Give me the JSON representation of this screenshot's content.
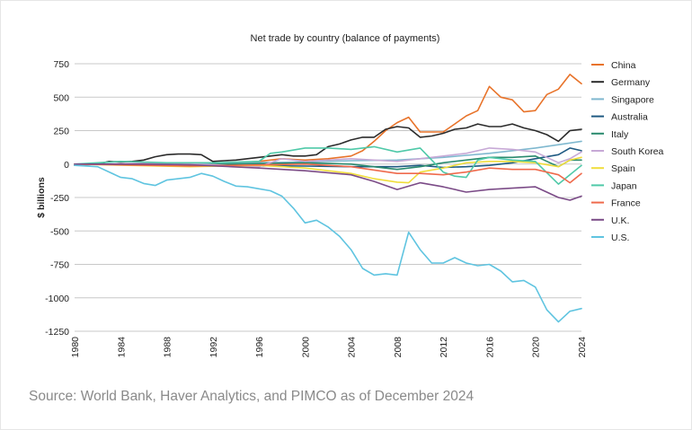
{
  "chart_data": {
    "type": "line",
    "title": "Net trade by country (balance of payments)",
    "xlabel": "",
    "ylabel": "$ billions",
    "xlim": [
      1980,
      2024
    ],
    "ylim": [
      -1250,
      750
    ],
    "yticks": [
      750,
      500,
      250,
      0,
      -250,
      -500,
      -750,
      -1000,
      -1250
    ],
    "xticks": [
      1980,
      1984,
      1988,
      1992,
      1996,
      2000,
      2004,
      2008,
      2012,
      2016,
      2020,
      2024
    ],
    "grid": "horizontal",
    "legend_position": "right",
    "series": [
      {
        "name": "China",
        "color": "#e8732a",
        "x": [
          1980,
          1984,
          1988,
          1990,
          1993,
          1994,
          1996,
          1998,
          2000,
          2002,
          2004,
          2005,
          2006,
          2007,
          2008,
          2009,
          2010,
          2011,
          2012,
          2013,
          2014,
          2015,
          2016,
          2017,
          2018,
          2019,
          2020,
          2021,
          2022,
          2023,
          2024
        ],
        "y": [
          0,
          0,
          -5,
          10,
          -10,
          10,
          20,
          40,
          30,
          40,
          60,
          100,
          170,
          250,
          310,
          350,
          240,
          240,
          240,
          300,
          360,
          400,
          580,
          500,
          480,
          390,
          400,
          520,
          560,
          670,
          600
        ]
      },
      {
        "name": "Germany",
        "color": "#2b2b2b",
        "x": [
          1980,
          1982,
          1983,
          1984,
          1985,
          1986,
          1987,
          1988,
          1989,
          1990,
          1991,
          1992,
          1993,
          1994,
          1995,
          1996,
          1997,
          1998,
          1999,
          2000,
          2001,
          2002,
          2003,
          2004,
          2005,
          2006,
          2007,
          2008,
          2009,
          2010,
          2011,
          2012,
          2013,
          2014,
          2015,
          2016,
          2017,
          2018,
          2019,
          2020,
          2021,
          2022,
          2023,
          2024
        ],
        "y": [
          -10,
          0,
          20,
          15,
          20,
          30,
          55,
          70,
          75,
          75,
          70,
          20,
          25,
          30,
          40,
          50,
          60,
          70,
          60,
          60,
          70,
          130,
          150,
          180,
          200,
          200,
          260,
          280,
          270,
          200,
          210,
          230,
          260,
          270,
          300,
          280,
          280,
          300,
          270,
          250,
          220,
          170,
          250,
          260
        ]
      },
      {
        "name": "Singapore",
        "color": "#7fb8cf",
        "x": [
          1980,
          1990,
          2000,
          2004,
          2008,
          2012,
          2016,
          2020,
          2024
        ],
        "y": [
          0,
          5,
          15,
          25,
          30,
          50,
          80,
          120,
          170
        ]
      },
      {
        "name": "Australia",
        "color": "#1f5a82",
        "x": [
          1980,
          1990,
          2000,
          2004,
          2008,
          2010,
          2012,
          2014,
          2016,
          2018,
          2020,
          2022,
          2023,
          2024
        ],
        "y": [
          0,
          -10,
          -15,
          -20,
          -20,
          -10,
          -25,
          -20,
          -10,
          10,
          40,
          70,
          120,
          100
        ]
      },
      {
        "name": "Italy",
        "color": "#2a8a6e",
        "x": [
          1980,
          1990,
          2000,
          2004,
          2008,
          2010,
          2012,
          2014,
          2016,
          2018,
          2020,
          2022,
          2023,
          2024
        ],
        "y": [
          0,
          -5,
          10,
          0,
          -40,
          -20,
          10,
          30,
          50,
          50,
          60,
          -20,
          30,
          30
        ]
      },
      {
        "name": "South Korea",
        "color": "#c7a9d6",
        "x": [
          1980,
          1988,
          1992,
          1996,
          1998,
          2000,
          2004,
          2008,
          2010,
          2012,
          2014,
          2016,
          2018,
          2020,
          2022,
          2023,
          2024
        ],
        "y": [
          -5,
          10,
          -5,
          -20,
          40,
          20,
          40,
          20,
          40,
          60,
          80,
          120,
          110,
          90,
          10,
          40,
          90
        ]
      },
      {
        "name": "Spain",
        "color": "#f0dd3c",
        "x": [
          1980,
          1990,
          1996,
          2000,
          2004,
          2006,
          2008,
          2009,
          2010,
          2012,
          2014,
          2016,
          2018,
          2020,
          2022,
          2023,
          2024
        ],
        "y": [
          0,
          -20,
          -10,
          -30,
          -70,
          -110,
          -135,
          -140,
          -60,
          -30,
          10,
          20,
          20,
          10,
          -20,
          30,
          50
        ]
      },
      {
        "name": "Japan",
        "color": "#4fc9a8",
        "x": [
          1980,
          1984,
          1988,
          1992,
          1996,
          1997,
          1998,
          2000,
          2002,
          2004,
          2006,
          2008,
          2010,
          2011,
          2012,
          2013,
          2014,
          2015,
          2016,
          2018,
          2020,
          2022,
          2024
        ],
        "y": [
          0,
          20,
          10,
          10,
          20,
          80,
          90,
          120,
          120,
          110,
          130,
          90,
          120,
          30,
          -60,
          -90,
          -100,
          30,
          50,
          30,
          20,
          -150,
          -10
        ]
      },
      {
        "name": "France",
        "color": "#ef6a4c",
        "x": [
          1980,
          1990,
          2000,
          2004,
          2008,
          2010,
          2012,
          2014,
          2016,
          2018,
          2020,
          2022,
          2023,
          2024
        ],
        "y": [
          0,
          -15,
          0,
          -20,
          -70,
          -70,
          -80,
          -60,
          -30,
          -40,
          -40,
          -80,
          -140,
          -70
        ]
      },
      {
        "name": "U.K.",
        "color": "#7b4b87",
        "x": [
          1980,
          1986,
          1990,
          1996,
          2000,
          2004,
          2006,
          2008,
          2010,
          2012,
          2014,
          2016,
          2018,
          2020,
          2022,
          2023,
          2024
        ],
        "y": [
          0,
          0,
          -5,
          -30,
          -50,
          -80,
          -130,
          -190,
          -140,
          -170,
          -210,
          -190,
          -180,
          -170,
          -250,
          -270,
          -240
        ]
      },
      {
        "name": "U.S.",
        "color": "#5fc4e0",
        "x": [
          1980,
          1982,
          1984,
          1985,
          1986,
          1987,
          1988,
          1989,
          1990,
          1991,
          1992,
          1993,
          1994,
          1995,
          1996,
          1997,
          1998,
          1999,
          2000,
          2001,
          2002,
          2003,
          2004,
          2005,
          2006,
          2007,
          2008,
          2009,
          2010,
          2011,
          2012,
          2013,
          2014,
          2015,
          2016,
          2017,
          2018,
          2019,
          2020,
          2021,
          2022,
          2023,
          2024
        ],
        "y": [
          -10,
          -20,
          -100,
          -110,
          -145,
          -160,
          -120,
          -110,
          -100,
          -70,
          -90,
          -130,
          -165,
          -170,
          -185,
          -200,
          -240,
          -330,
          -440,
          -420,
          -470,
          -540,
          -640,
          -780,
          -830,
          -820,
          -830,
          -510,
          -640,
          -740,
          -740,
          -700,
          -740,
          -760,
          -750,
          -800,
          -880,
          -870,
          -920,
          -1090,
          -1180,
          -1100,
          -1080
        ]
      }
    ]
  },
  "source": "Source: World Bank, Haver Analytics, and PIMCO as of December 2024"
}
